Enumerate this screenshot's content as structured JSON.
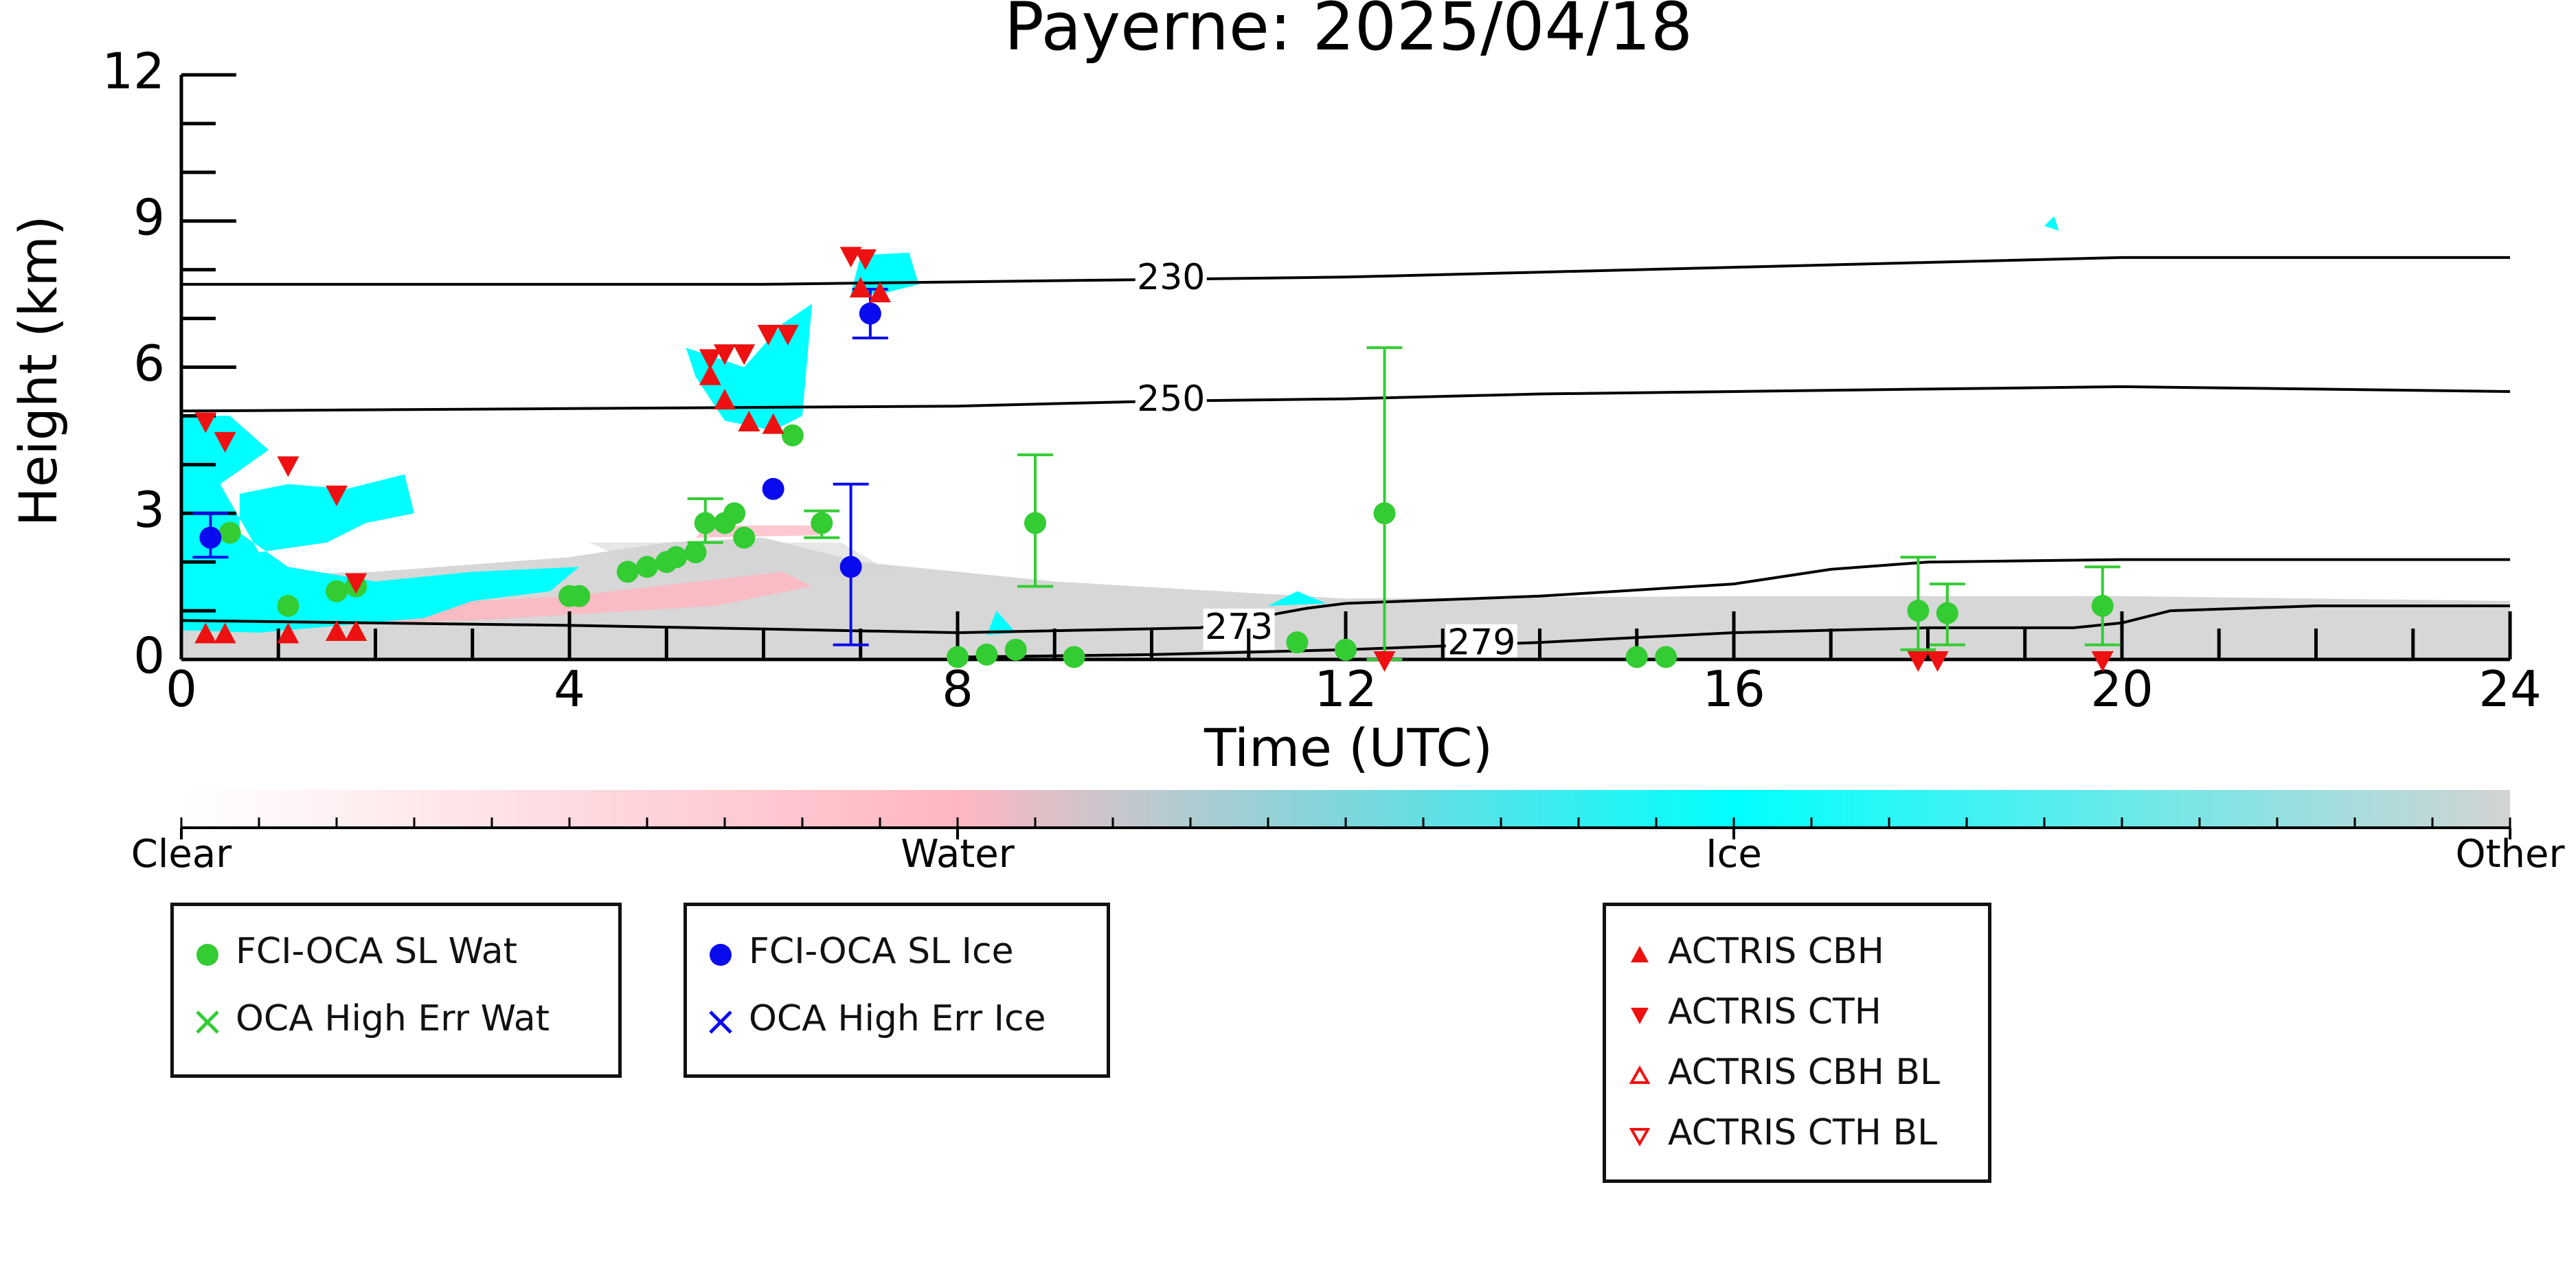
{
  "chart_data": {
    "type": "scatter",
    "title": "Payerne: 2025/04/18",
    "xlabel": "Time (UTC)",
    "ylabel": "Height (km)",
    "xlim": [
      0,
      24
    ],
    "ylim": [
      0,
      12
    ],
    "x_ticks": [
      "0",
      "4",
      "8",
      "12",
      "16",
      "20",
      "24"
    ],
    "y_ticks": [
      "0",
      "3",
      "6",
      "9",
      "12"
    ],
    "colorbar": {
      "labels": [
        "Clear",
        "Water",
        "Ice",
        "Other"
      ],
      "colors": [
        "#ffffff",
        "#ffb6c1",
        "#00ffff",
        "#d3d3d3"
      ]
    },
    "isotherms": [
      {
        "label": "230",
        "points": [
          [
            0,
            7.7
          ],
          [
            6,
            7.7
          ],
          [
            10,
            7.8
          ],
          [
            12,
            7.85
          ],
          [
            14,
            7.95
          ],
          [
            16,
            8.05
          ],
          [
            18,
            8.15
          ],
          [
            20,
            8.25
          ],
          [
            24,
            8.25
          ]
        ]
      },
      {
        "label": "250",
        "points": [
          [
            0,
            5.1
          ],
          [
            4,
            5.15
          ],
          [
            8,
            5.2
          ],
          [
            10,
            5.3
          ],
          [
            12,
            5.35
          ],
          [
            14,
            5.45
          ],
          [
            16,
            5.5
          ],
          [
            18,
            5.55
          ],
          [
            20,
            5.6
          ],
          [
            22,
            5.55
          ],
          [
            24,
            5.5
          ]
        ]
      },
      {
        "label": "273",
        "points": [
          [
            0,
            0.8
          ],
          [
            4,
            0.7
          ],
          [
            8,
            0.55
          ],
          [
            10.5,
            0.65
          ],
          [
            11.6,
            1.05
          ],
          [
            12,
            1.15
          ],
          [
            14,
            1.3
          ],
          [
            16,
            1.55
          ],
          [
            17,
            1.85
          ],
          [
            18,
            2.0
          ],
          [
            20,
            2.05
          ],
          [
            24,
            2.05
          ]
        ]
      },
      {
        "label": "279",
        "points": [
          [
            8,
            0.05
          ],
          [
            10,
            0.1
          ],
          [
            12,
            0.2
          ],
          [
            14,
            0.35
          ],
          [
            16,
            0.55
          ],
          [
            18,
            0.65
          ],
          [
            19.5,
            0.65
          ],
          [
            20,
            0.75
          ],
          [
            20.5,
            1.0
          ],
          [
            22,
            1.1
          ],
          [
            24,
            1.1
          ]
        ]
      }
    ],
    "series": [
      {
        "name": "FCI-OCA SL Wat",
        "color": "#33cc33",
        "marker": "circle",
        "points": [
          [
            0.5,
            2.6
          ],
          [
            1.1,
            1.1
          ],
          [
            1.6,
            1.4
          ],
          [
            1.8,
            1.5
          ],
          [
            4.0,
            1.3
          ],
          [
            4.1,
            1.3
          ],
          [
            4.6,
            1.8
          ],
          [
            4.8,
            1.9
          ],
          [
            5.0,
            2.0
          ],
          [
            5.1,
            2.1
          ],
          [
            5.3,
            2.2
          ],
          [
            5.4,
            2.8
          ],
          [
            5.6,
            2.8
          ],
          [
            5.7,
            3.0
          ],
          [
            5.8,
            2.5
          ],
          [
            6.3,
            4.6
          ],
          [
            6.6,
            2.8
          ],
          [
            8.0,
            0.05
          ],
          [
            8.3,
            0.1
          ],
          [
            8.6,
            0.2
          ],
          [
            8.8,
            2.8
          ],
          [
            9.2,
            0.05
          ],
          [
            11.5,
            0.35
          ],
          [
            12.0,
            0.2
          ],
          [
            12.4,
            3.0
          ],
          [
            15.0,
            0.05
          ],
          [
            15.3,
            0.05
          ],
          [
            17.9,
            1.0
          ],
          [
            18.2,
            0.95
          ],
          [
            19.8,
            1.1
          ]
        ],
        "errors": [
          [
            8.8,
            1.5,
            4.2
          ],
          [
            12.4,
            0.0,
            6.4
          ],
          [
            17.9,
            0.2,
            2.1
          ],
          [
            18.2,
            0.3,
            1.55
          ],
          [
            19.8,
            0.3,
            1.9
          ],
          [
            6.6,
            2.5,
            3.05
          ],
          [
            5.4,
            2.4,
            3.3
          ]
        ]
      },
      {
        "name": "FCI-OCA SL Ice",
        "color": "#0a0aee",
        "marker": "circle",
        "points": [
          [
            0.3,
            2.5
          ],
          [
            6.1,
            3.5
          ],
          [
            6.9,
            1.9
          ],
          [
            7.1,
            7.1
          ]
        ],
        "errors": [
          [
            0.3,
            2.1,
            3.0
          ],
          [
            6.9,
            0.3,
            3.6
          ],
          [
            7.1,
            6.6,
            7.6
          ]
        ]
      },
      {
        "name": "OCA High Err Wat",
        "color": "#33cc33",
        "marker": "x",
        "points": []
      },
      {
        "name": "OCA High Err Ice",
        "color": "#0a0aee",
        "marker": "x",
        "points": []
      },
      {
        "name": "ACTRIS CBH",
        "color": "#ee1111",
        "marker": "triangle-up",
        "points": [
          [
            0.25,
            0.5
          ],
          [
            0.45,
            0.5
          ],
          [
            1.1,
            0.5
          ],
          [
            1.6,
            0.55
          ],
          [
            1.8,
            0.55
          ],
          [
            5.45,
            5.8
          ],
          [
            5.6,
            5.3
          ],
          [
            5.85,
            4.85
          ],
          [
            6.1,
            4.8
          ],
          [
            7.0,
            7.6
          ],
          [
            7.2,
            7.5
          ]
        ]
      },
      {
        "name": "ACTRIS CTH",
        "color": "#ee1111",
        "marker": "triangle-down",
        "points": [
          [
            0.25,
            4.9
          ],
          [
            0.45,
            4.5
          ],
          [
            1.1,
            4.0
          ],
          [
            1.6,
            3.4
          ],
          [
            1.8,
            1.6
          ],
          [
            5.45,
            6.2
          ],
          [
            5.6,
            6.3
          ],
          [
            5.8,
            6.3
          ],
          [
            6.05,
            6.7
          ],
          [
            6.25,
            6.7
          ],
          [
            6.9,
            8.3
          ],
          [
            7.05,
            8.25
          ],
          [
            12.4,
            0.0
          ],
          [
            17.9,
            0.0
          ],
          [
            18.1,
            0.0
          ],
          [
            19.8,
            0.0
          ]
        ]
      },
      {
        "name": "ACTRIS CBH BL",
        "color": "#ee1111",
        "marker": "triangle-up-open",
        "points": []
      },
      {
        "name": "ACTRIS CTH BL",
        "color": "#ee1111",
        "marker": "triangle-down-open",
        "points": []
      }
    ],
    "legends": [
      {
        "items": [
          "FCI-OCA SL Wat",
          "OCA High Err Wat"
        ]
      },
      {
        "items": [
          "FCI-OCA SL Ice",
          "OCA High Err Ice"
        ]
      },
      {
        "items": [
          "ACTRIS CBH",
          "ACTRIS CTH",
          "ACTRIS CBH BL",
          "ACTRIS CTH BL"
        ]
      }
    ]
  }
}
